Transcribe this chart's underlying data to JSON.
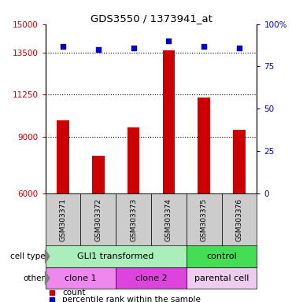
{
  "title": "GDS3550 / 1373941_at",
  "samples": [
    "GSM303371",
    "GSM303372",
    "GSM303373",
    "GSM303374",
    "GSM303375",
    "GSM303376"
  ],
  "counts": [
    9900,
    8000,
    9500,
    13600,
    11100,
    9400
  ],
  "percentile_ranks": [
    87,
    85,
    86,
    90,
    87,
    86
  ],
  "ylim_left": [
    6000,
    15000
  ],
  "yticks_left": [
    6000,
    9000,
    11250,
    13500,
    15000
  ],
  "ytick_labels_left": [
    "6000",
    "9000",
    "11250",
    "13500",
    "15000"
  ],
  "ylim_right": [
    0,
    100
  ],
  "yticks_right": [
    0,
    25,
    50,
    75,
    100
  ],
  "ytick_labels_right": [
    "0",
    "25",
    "50",
    "75",
    "100%"
  ],
  "bar_color": "#cc0000",
  "dot_color": "#0000cc",
  "cell_type_groups": [
    {
      "label": "GLI1 transformed",
      "start": 0,
      "end": 3,
      "color": "#aaeebb"
    },
    {
      "label": "control",
      "start": 4,
      "end": 5,
      "color": "#44dd55"
    }
  ],
  "other_groups": [
    {
      "label": "clone 1",
      "start": 0,
      "end": 1,
      "color": "#ee88ee"
    },
    {
      "label": "clone 2",
      "start": 2,
      "end": 3,
      "color": "#dd44dd"
    },
    {
      "label": "parental cell",
      "start": 4,
      "end": 5,
      "color": "#eeccee"
    }
  ],
  "bar_width": 0.35,
  "label_color_left": "#cc0000",
  "label_color_right": "#0000cc",
  "bg_color": "#ffffff",
  "tick_area_bg": "#cccccc",
  "figsize": [
    3.71,
    3.84
  ],
  "dpi": 100
}
